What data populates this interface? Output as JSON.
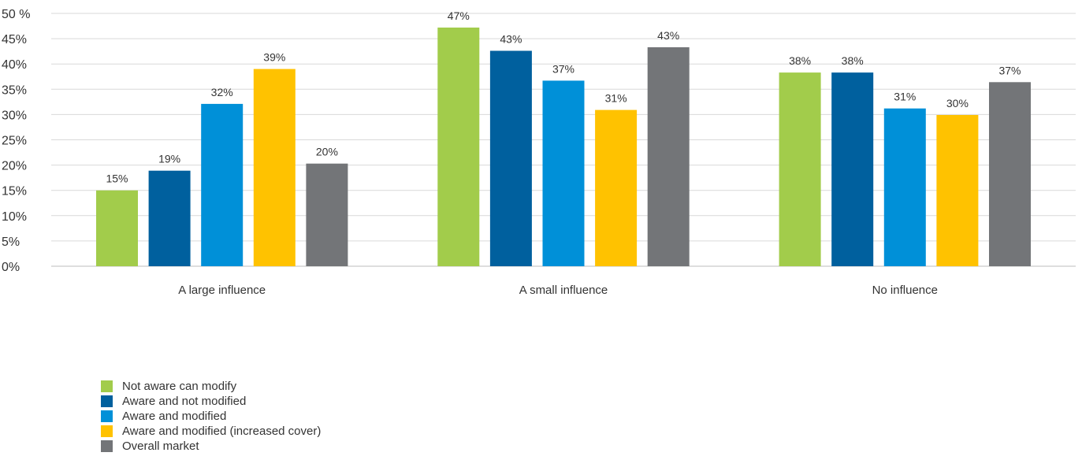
{
  "chart_data": {
    "type": "bar",
    "categories": [
      "A large influence",
      "A small influence",
      "No influence"
    ],
    "series": [
      {
        "name": "Not aware can modify",
        "color": "#a2cc4b",
        "values": [
          15,
          47,
          38
        ]
      },
      {
        "name": "Aware and not modified",
        "color": "#00609e",
        "values": [
          19,
          43,
          38
        ]
      },
      {
        "name": "Aware and modified",
        "color": "#0090d8",
        "values": [
          32,
          37,
          31
        ]
      },
      {
        "name": "Aware and modified (increased cover)",
        "color": "#ffc200",
        "values": [
          39,
          31,
          30
        ]
      },
      {
        "name": "Overall market",
        "color": "#737578",
        "values": [
          20,
          43,
          37
        ]
      }
    ],
    "bar_heights_pct": [
      [
        15,
        47.2,
        38.3
      ],
      [
        18.9,
        42.6,
        38.3
      ],
      [
        32.1,
        36.7,
        31.2
      ],
      [
        39.0,
        30.9,
        29.9
      ],
      [
        20.3,
        43.3,
        36.4
      ]
    ],
    "y_ticks": [
      "0%",
      "5%",
      "10%",
      "15%",
      "20%",
      "25%",
      "30%",
      "35%",
      "40%",
      "45%",
      "50 %"
    ],
    "ylim": [
      0,
      50
    ],
    "xlabel": "",
    "ylabel": "",
    "grid": true,
    "legend_position": "bottom-left"
  }
}
